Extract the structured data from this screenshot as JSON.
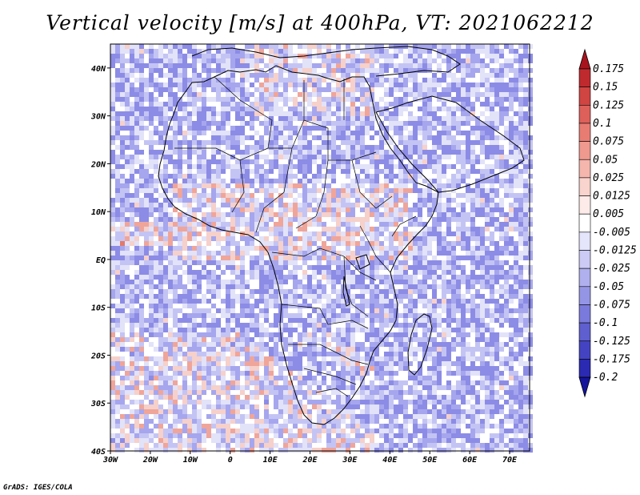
{
  "title": "Vertical velocity [m/s] at 400hPa, VT: 2021062212",
  "credit": "GrADS: IGES/COLA",
  "chart_data": {
    "type": "heatmap",
    "title": "Vertical velocity [m/s] at 400hPa, VT: 2021062212",
    "variable": "Vertical velocity",
    "units": "m/s",
    "level": "400hPa",
    "valid_time": "2021062212",
    "xlim": [
      -30,
      75
    ],
    "ylim": [
      -40,
      45
    ],
    "x_ticks": [
      {
        "value": -30,
        "label": "30W"
      },
      {
        "value": -20,
        "label": "20W"
      },
      {
        "value": -10,
        "label": "10W"
      },
      {
        "value": 0,
        "label": "0"
      },
      {
        "value": 10,
        "label": "10E"
      },
      {
        "value": 20,
        "label": "20E"
      },
      {
        "value": 30,
        "label": "30E"
      },
      {
        "value": 40,
        "label": "40E"
      },
      {
        "value": 50,
        "label": "50E"
      },
      {
        "value": 60,
        "label": "60E"
      },
      {
        "value": 70,
        "label": "70E"
      }
    ],
    "y_ticks": [
      {
        "value": -40,
        "label": "40S"
      },
      {
        "value": -30,
        "label": "30S"
      },
      {
        "value": -20,
        "label": "20S"
      },
      {
        "value": -10,
        "label": "10S"
      },
      {
        "value": 0,
        "label": "EQ"
      },
      {
        "value": 10,
        "label": "10N"
      },
      {
        "value": 20,
        "label": "20N"
      },
      {
        "value": 30,
        "label": "30N"
      },
      {
        "value": 40,
        "label": "40N"
      }
    ],
    "colorbar": {
      "labels": [
        "0.175",
        "0.15",
        "0.125",
        "0.1",
        "0.075",
        "0.05",
        "0.025",
        "0.0125",
        "0.005",
        "-0.005",
        "-0.0125",
        "-0.025",
        "-0.05",
        "-0.075",
        "-0.1",
        "-0.125",
        "-0.175",
        "-0.2"
      ],
      "colors": [
        "#a8141e",
        "#bf2a2e",
        "#d04442",
        "#de605a",
        "#e87c73",
        "#f0998f",
        "#f5b6ad",
        "#f9d3cd",
        "#fcebe8",
        "#ffffff",
        "#e5e5fb",
        "#cbcbf5",
        "#b0b0ee",
        "#9595e6",
        "#7a7adc",
        "#5f5fd0",
        "#4444c2",
        "#2a2ab2",
        "#14149c"
      ]
    }
  }
}
